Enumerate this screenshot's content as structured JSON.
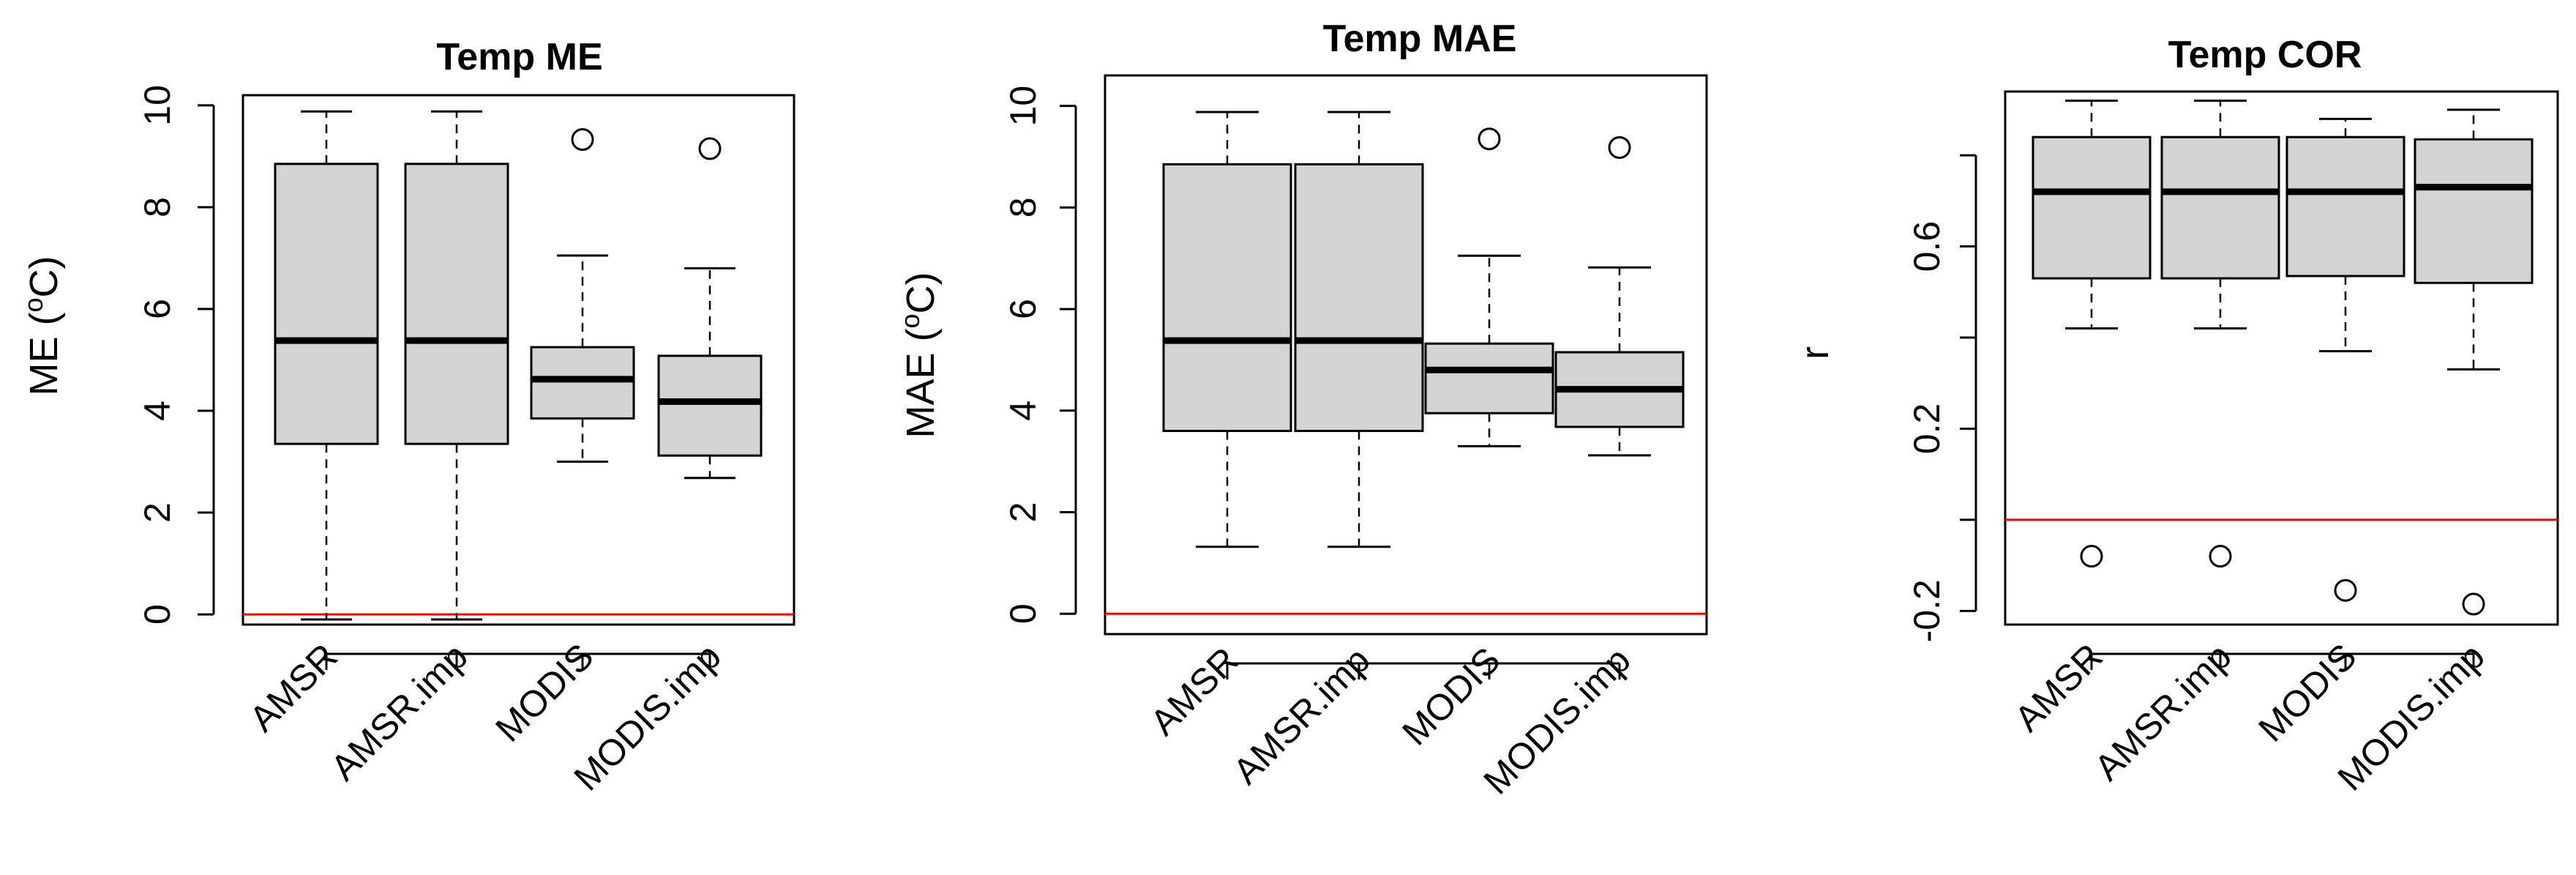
{
  "chart_data": [
    {
      "id": "me",
      "type": "boxplot",
      "title": "Temp ME",
      "ylabel": "ME (°C)",
      "ylabel_main": "ME (",
      "ylabel_sup": "o",
      "ylabel_tail": "C)",
      "xlabel": "",
      "ylim": [
        -0.2,
        10.2
      ],
      "yticks": [
        0,
        2,
        4,
        6,
        8,
        10
      ],
      "ytick_labels": [
        "0",
        "2",
        "4",
        "6",
        "8",
        "10"
      ],
      "reference_line": 0,
      "reference_color": "#ff0000",
      "categories": [
        "AMSR",
        "AMSR.imp",
        "MODIS",
        "MODIS.imp"
      ],
      "boxes": [
        {
          "whisker_low": -0.1,
          "q1": 3.35,
          "median": 5.38,
          "q3": 8.85,
          "whisker_high": 9.88,
          "outliers": []
        },
        {
          "whisker_low": -0.1,
          "q1": 3.35,
          "median": 5.38,
          "q3": 8.85,
          "whisker_high": 9.88,
          "outliers": []
        },
        {
          "whisker_low": 3.0,
          "q1": 3.85,
          "median": 4.62,
          "q3": 5.25,
          "whisker_high": 7.05,
          "outliers": [
            9.33
          ]
        },
        {
          "whisker_low": 2.68,
          "q1": 3.12,
          "median": 4.18,
          "q3": 5.08,
          "whisker_high": 6.8,
          "outliers": [
            9.15
          ]
        }
      ]
    },
    {
      "id": "mae",
      "type": "boxplot",
      "title": "Temp MAE",
      "ylabel": "MAE (°C)",
      "ylabel_main": "MAE (",
      "ylabel_sup": "o",
      "ylabel_tail": "C)",
      "xlabel": "",
      "ylim": [
        -0.4,
        10.6
      ],
      "yticks": [
        0,
        2,
        4,
        6,
        8,
        10
      ],
      "ytick_labels": [
        "0",
        "2",
        "4",
        "6",
        "8",
        "10"
      ],
      "reference_line": 0,
      "reference_color": "#ff0000",
      "categories": [
        "AMSR",
        "AMSR.imp",
        "MODIS",
        "MODIS.imp"
      ],
      "boxes": [
        {
          "whisker_low": 1.32,
          "q1": 3.6,
          "median": 5.38,
          "q3": 8.85,
          "whisker_high": 9.88,
          "outliers": []
        },
        {
          "whisker_low": 1.32,
          "q1": 3.6,
          "median": 5.38,
          "q3": 8.85,
          "whisker_high": 9.88,
          "outliers": []
        },
        {
          "whisker_low": 3.3,
          "q1": 3.95,
          "median": 4.8,
          "q3": 5.32,
          "whisker_high": 7.05,
          "outliers": [
            9.35
          ]
        },
        {
          "whisker_low": 3.12,
          "q1": 3.68,
          "median": 4.42,
          "q3": 5.15,
          "whisker_high": 6.82,
          "outliers": [
            9.18
          ]
        }
      ]
    },
    {
      "id": "cor",
      "type": "boxplot",
      "title": "Temp COR",
      "ylabel": "r",
      "xlabel": "",
      "ylim": [
        -0.23,
        0.94
      ],
      "yticks": [
        -0.2,
        0.2,
        0.6
      ],
      "ytick_labels": [
        "-0.2",
        "0.2",
        "0.6"
      ],
      "minor_ticks": [
        0.0,
        0.4,
        0.8
      ],
      "reference_line": 0,
      "reference_color": "#ff0000",
      "categories": [
        "AMSR",
        "AMSR.imp",
        "MODIS",
        "MODIS.imp"
      ],
      "boxes": [
        {
          "whisker_low": 0.42,
          "q1": 0.53,
          "median": 0.72,
          "q3": 0.84,
          "whisker_high": 0.92,
          "outliers": [
            -0.08
          ]
        },
        {
          "whisker_low": 0.42,
          "q1": 0.53,
          "median": 0.72,
          "q3": 0.84,
          "whisker_high": 0.92,
          "outliers": [
            -0.08
          ]
        },
        {
          "whisker_low": 0.37,
          "q1": 0.535,
          "median": 0.72,
          "q3": 0.84,
          "whisker_high": 0.88,
          "outliers": [
            -0.155
          ]
        },
        {
          "whisker_low": 0.33,
          "q1": 0.52,
          "median": 0.73,
          "q3": 0.835,
          "whisker_high": 0.9,
          "outliers": [
            -0.185
          ]
        }
      ]
    }
  ]
}
